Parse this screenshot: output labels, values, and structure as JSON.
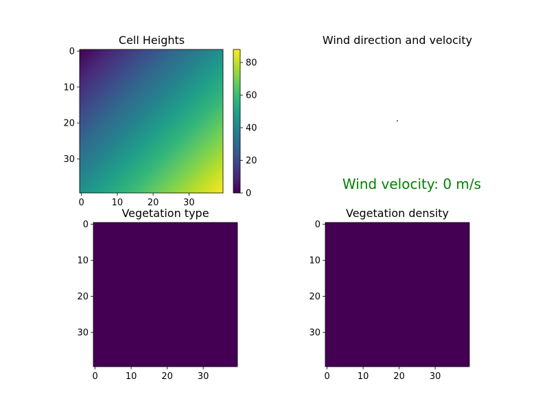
{
  "figure": {
    "background": "#ffffff",
    "wind_note": "Wind velocity: 0 m/s",
    "wind_note_color": "#008000"
  },
  "chart_data": [
    {
      "type": "heatmap",
      "title": "Cell Heights",
      "xlabel": "",
      "ylabel": "",
      "grid_size": [
        40,
        40
      ],
      "x_ticks": [
        0,
        10,
        20,
        30
      ],
      "y_ticks": [
        0,
        10,
        20,
        30
      ],
      "value_model": "height[row][col] = (row + col) * 44 / 39",
      "corners": {
        "top_left": 0,
        "top_right": 44,
        "bottom_left": 44,
        "bottom_right": 88
      },
      "colormap": "viridis",
      "colorbar": {
        "range": [
          0,
          88
        ],
        "ticks": [
          0,
          20,
          40,
          60,
          80
        ]
      },
      "grid": false
    },
    {
      "type": "quiver",
      "title": "Wind direction and velocity",
      "axes_visible": false,
      "vectors": [
        {
          "x": 0,
          "y": 0,
          "u": 0,
          "v": 0
        }
      ],
      "annotation": "Wind velocity: 0 m/s"
    },
    {
      "type": "heatmap",
      "title": "Vegetation type",
      "xlabel": "",
      "ylabel": "",
      "grid_size": [
        40,
        40
      ],
      "x_ticks": [
        0,
        10,
        20,
        30
      ],
      "y_ticks": [
        0,
        10,
        20,
        30
      ],
      "uniform_value": 0,
      "colormap": "viridis",
      "color": "#440154",
      "grid": false
    },
    {
      "type": "heatmap",
      "title": "Vegetation density",
      "xlabel": "",
      "ylabel": "",
      "grid_size": [
        40,
        40
      ],
      "x_ticks": [
        0,
        10,
        20,
        30
      ],
      "y_ticks": [
        0,
        10,
        20,
        30
      ],
      "uniform_value": 0,
      "colormap": "viridis",
      "color": "#440154",
      "grid": false
    }
  ]
}
